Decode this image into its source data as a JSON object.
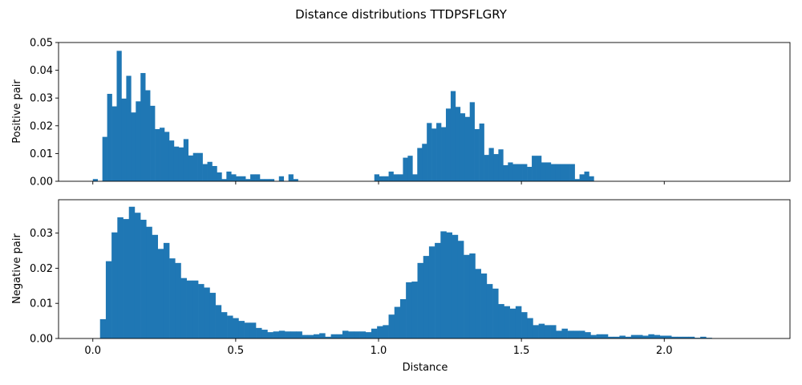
{
  "chart_data": {
    "type": "bar",
    "title": "Distance distributions TTDPSFLGRY",
    "xlabel": "Distance",
    "bar_color": "#1f77b4",
    "shared_xlim": [
      -0.12,
      2.44
    ],
    "x_ticks": [
      "0.0",
      "0.5",
      "1.0",
      "1.5",
      "2.0"
    ],
    "x_tick_values": [
      0.0,
      0.5,
      1.0,
      1.5,
      2.0
    ],
    "subplots": [
      {
        "ylabel": "Positive pair",
        "ylim": [
          0,
          0.05
        ],
        "y_ticks": [
          "0.00",
          "0.01",
          "0.02",
          "0.03",
          "0.04",
          "0.05"
        ],
        "y_tick_values": [
          0,
          0.01,
          0.02,
          0.03,
          0.04,
          0.05
        ],
        "bin_width": 0.0167,
        "bins": [
          [
            0.0,
            0.0008
          ],
          [
            0.0334,
            0.016
          ],
          [
            0.0501,
            0.0315
          ],
          [
            0.0668,
            0.027
          ],
          [
            0.0835,
            0.047
          ],
          [
            0.1002,
            0.0298
          ],
          [
            0.1169,
            0.038
          ],
          [
            0.1336,
            0.0248
          ],
          [
            0.1503,
            0.0288
          ],
          [
            0.167,
            0.039
          ],
          [
            0.1837,
            0.0328
          ],
          [
            0.2004,
            0.0272
          ],
          [
            0.2171,
            0.0188
          ],
          [
            0.2338,
            0.0193
          ],
          [
            0.2505,
            0.0178
          ],
          [
            0.2672,
            0.0147
          ],
          [
            0.2839,
            0.0125
          ],
          [
            0.3006,
            0.0122
          ],
          [
            0.3173,
            0.0152
          ],
          [
            0.334,
            0.0093
          ],
          [
            0.3507,
            0.0102
          ],
          [
            0.3674,
            0.0102
          ],
          [
            0.3841,
            0.0062
          ],
          [
            0.4008,
            0.007
          ],
          [
            0.4175,
            0.0055
          ],
          [
            0.4342,
            0.0032
          ],
          [
            0.4509,
            0.0008
          ],
          [
            0.4676,
            0.0035
          ],
          [
            0.4843,
            0.0025
          ],
          [
            0.501,
            0.0018
          ],
          [
            0.5177,
            0.0018
          ],
          [
            0.5344,
            0.0008
          ],
          [
            0.5511,
            0.0025
          ],
          [
            0.5678,
            0.0025
          ],
          [
            0.5845,
            0.0008
          ],
          [
            0.6012,
            0.0008
          ],
          [
            0.6179,
            0.0008
          ],
          [
            0.6513,
            0.0018
          ],
          [
            0.6847,
            0.0025
          ],
          [
            0.7014,
            0.0008
          ],
          [
            0.9852,
            0.0025
          ],
          [
            1.0019,
            0.0018
          ],
          [
            1.0186,
            0.0018
          ],
          [
            1.0353,
            0.0035
          ],
          [
            1.052,
            0.0025
          ],
          [
            1.0687,
            0.0025
          ],
          [
            1.0854,
            0.0085
          ],
          [
            1.1021,
            0.0092
          ],
          [
            1.1188,
            0.0025
          ],
          [
            1.1355,
            0.012
          ],
          [
            1.1522,
            0.0135
          ],
          [
            1.1689,
            0.021
          ],
          [
            1.1856,
            0.019
          ],
          [
            1.2023,
            0.021
          ],
          [
            1.219,
            0.0195
          ],
          [
            1.2357,
            0.0262
          ],
          [
            1.2524,
            0.0325
          ],
          [
            1.2691,
            0.0268
          ],
          [
            1.2858,
            0.0245
          ],
          [
            1.3025,
            0.0232
          ],
          [
            1.3192,
            0.0285
          ],
          [
            1.3359,
            0.0188
          ],
          [
            1.3526,
            0.0208
          ],
          [
            1.3693,
            0.0095
          ],
          [
            1.386,
            0.012
          ],
          [
            1.4027,
            0.0098
          ],
          [
            1.4194,
            0.0115
          ],
          [
            1.4361,
            0.0058
          ],
          [
            1.4528,
            0.0068
          ],
          [
            1.4695,
            0.0062
          ],
          [
            1.4862,
            0.0062
          ],
          [
            1.5029,
            0.0062
          ],
          [
            1.5196,
            0.0052
          ],
          [
            1.5363,
            0.0092
          ],
          [
            1.553,
            0.0092
          ],
          [
            1.5697,
            0.0068
          ],
          [
            1.5864,
            0.0068
          ],
          [
            1.6031,
            0.0062
          ],
          [
            1.6198,
            0.0062
          ],
          [
            1.6365,
            0.0062
          ],
          [
            1.6532,
            0.0062
          ],
          [
            1.6699,
            0.0062
          ],
          [
            1.6866,
            0.0008
          ],
          [
            1.7033,
            0.0025
          ],
          [
            1.72,
            0.0035
          ],
          [
            1.7367,
            0.0018
          ]
        ]
      },
      {
        "ylabel": "Negative pair",
        "ylim": [
          0,
          0.0395
        ],
        "y_ticks": [
          "0.00",
          "0.01",
          "0.02",
          "0.03"
        ],
        "y_tick_values": [
          0,
          0.01,
          0.02,
          0.03
        ],
        "bin_width": 0.0202,
        "bins": [
          [
            0.0252,
            0.0055
          ],
          [
            0.0454,
            0.022
          ],
          [
            0.0656,
            0.0302
          ],
          [
            0.0858,
            0.0345
          ],
          [
            0.106,
            0.034
          ],
          [
            0.1262,
            0.0375
          ],
          [
            0.1464,
            0.0358
          ],
          [
            0.1666,
            0.0338
          ],
          [
            0.1868,
            0.0318
          ],
          [
            0.207,
            0.0295
          ],
          [
            0.2272,
            0.0255
          ],
          [
            0.2474,
            0.0272
          ],
          [
            0.2676,
            0.0228
          ],
          [
            0.2878,
            0.0215
          ],
          [
            0.308,
            0.0172
          ],
          [
            0.3282,
            0.0165
          ],
          [
            0.3484,
            0.0165
          ],
          [
            0.3686,
            0.0155
          ],
          [
            0.3888,
            0.0145
          ],
          [
            0.409,
            0.013
          ],
          [
            0.4292,
            0.0095
          ],
          [
            0.4494,
            0.0075
          ],
          [
            0.4696,
            0.0065
          ],
          [
            0.4898,
            0.0058
          ],
          [
            0.51,
            0.005
          ],
          [
            0.5302,
            0.0045
          ],
          [
            0.5504,
            0.0045
          ],
          [
            0.5706,
            0.003
          ],
          [
            0.5908,
            0.0025
          ],
          [
            0.611,
            0.0018
          ],
          [
            0.6312,
            0.002
          ],
          [
            0.6514,
            0.0022
          ],
          [
            0.6716,
            0.002
          ],
          [
            0.6918,
            0.002
          ],
          [
            0.712,
            0.002
          ],
          [
            0.7322,
            0.001
          ],
          [
            0.7524,
            0.001
          ],
          [
            0.7726,
            0.0012
          ],
          [
            0.7928,
            0.0015
          ],
          [
            0.813,
            0.0005
          ],
          [
            0.8332,
            0.0012
          ],
          [
            0.8534,
            0.0012
          ],
          [
            0.8736,
            0.0022
          ],
          [
            0.8938,
            0.002
          ],
          [
            0.914,
            0.002
          ],
          [
            0.9342,
            0.002
          ],
          [
            0.9544,
            0.0018
          ],
          [
            0.9746,
            0.0028
          ],
          [
            0.9948,
            0.0035
          ],
          [
            1.015,
            0.0038
          ],
          [
            1.0352,
            0.0068
          ],
          [
            1.0554,
            0.009
          ],
          [
            1.0756,
            0.0112
          ],
          [
            1.0958,
            0.016
          ],
          [
            1.116,
            0.0162
          ],
          [
            1.1362,
            0.0215
          ],
          [
            1.1564,
            0.0235
          ],
          [
            1.1766,
            0.0262
          ],
          [
            1.1968,
            0.0272
          ],
          [
            1.217,
            0.0305
          ],
          [
            1.2372,
            0.0302
          ],
          [
            1.2574,
            0.0295
          ],
          [
            1.2776,
            0.0278
          ],
          [
            1.2978,
            0.0238
          ],
          [
            1.318,
            0.0242
          ],
          [
            1.3382,
            0.0198
          ],
          [
            1.3584,
            0.0185
          ],
          [
            1.3786,
            0.0155
          ],
          [
            1.3988,
            0.0142
          ],
          [
            1.419,
            0.0098
          ],
          [
            1.4392,
            0.0092
          ],
          [
            1.4594,
            0.0085
          ],
          [
            1.4796,
            0.0092
          ],
          [
            1.4998,
            0.0075
          ],
          [
            1.52,
            0.0058
          ],
          [
            1.5402,
            0.0038
          ],
          [
            1.5604,
            0.0042
          ],
          [
            1.5806,
            0.0038
          ],
          [
            1.6008,
            0.0038
          ],
          [
            1.621,
            0.0022
          ],
          [
            1.6412,
            0.0028
          ],
          [
            1.6614,
            0.0022
          ],
          [
            1.6816,
            0.0022
          ],
          [
            1.7018,
            0.0022
          ],
          [
            1.722,
            0.0018
          ],
          [
            1.7422,
            0.001
          ],
          [
            1.7624,
            0.0012
          ],
          [
            1.7826,
            0.0012
          ],
          [
            1.8028,
            0.0005
          ],
          [
            1.823,
            0.0005
          ],
          [
            1.8432,
            0.0008
          ],
          [
            1.8634,
            0.0005
          ],
          [
            1.8836,
            0.001
          ],
          [
            1.9038,
            0.001
          ],
          [
            1.924,
            0.0008
          ],
          [
            1.9442,
            0.0012
          ],
          [
            1.9644,
            0.001
          ],
          [
            1.9846,
            0.0008
          ],
          [
            2.0048,
            0.0008
          ],
          [
            2.025,
            0.0005
          ],
          [
            2.0452,
            0.0005
          ],
          [
            2.0654,
            0.0005
          ],
          [
            2.0856,
            0.0005
          ],
          [
            2.1058,
            0.0002
          ],
          [
            2.126,
            0.0005
          ],
          [
            2.1462,
            0.0002
          ]
        ]
      }
    ]
  }
}
